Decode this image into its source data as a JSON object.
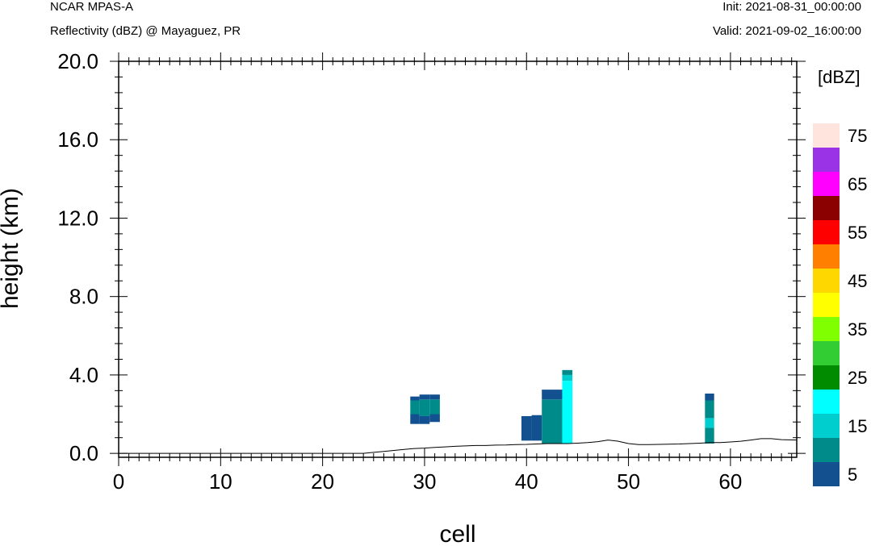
{
  "header": {
    "title": "NCAR MPAS-A",
    "subtitle": "Reflectivity (dBZ) @ Mayaguez, PR",
    "init": "Init: 2021-08-31_00:00:00",
    "valid": "Valid: 2021-09-02_16:00:00"
  },
  "chart_data": {
    "type": "heatmap",
    "title": "Reflectivity (dBZ) @ Mayaguez, PR",
    "xlabel": "cell",
    "ylabel": "height (km)",
    "xlim": [
      0,
      66.5
    ],
    "ylim": [
      -0.2,
      20.0
    ],
    "xticks": [
      0,
      10,
      20,
      30,
      40,
      50,
      60
    ],
    "xtick_labels": [
      "0",
      "10",
      "20",
      "30",
      "40",
      "50",
      "60"
    ],
    "yticks": [
      0,
      4,
      8,
      12,
      16,
      20
    ],
    "ytick_labels": [
      "0.0",
      "4.0",
      "8.0",
      "12.0",
      "16.0",
      "20.0"
    ],
    "grid": false,
    "colorbar": {
      "title": "[dBZ]",
      "levels": [
        5,
        10,
        15,
        20,
        25,
        30,
        35,
        40,
        45,
        50,
        55,
        60,
        65,
        70,
        75
      ],
      "labels": [
        "5",
        "15",
        "25",
        "35",
        "45",
        "55",
        "65",
        "75"
      ],
      "colors": [
        "#12508f",
        "#008b8b",
        "#00cdcd",
        "#00ffff",
        "#008b00",
        "#32cd32",
        "#7fff00",
        "#ffff00",
        "#ffd700",
        "#ff7f00",
        "#ff0000",
        "#8b0000",
        "#ff00ff",
        "#9a32e6",
        "#ffe4de"
      ]
    },
    "terrain": {
      "x": [
        0,
        23,
        24,
        25,
        26,
        27,
        28,
        29,
        30,
        31,
        32,
        33,
        34,
        35,
        36,
        37,
        38,
        39,
        40,
        41,
        42,
        43,
        44,
        45,
        46,
        47,
        48,
        49,
        50,
        51,
        52,
        53,
        54,
        55,
        56,
        57,
        58,
        59,
        60,
        61,
        62,
        63,
        64,
        65,
        66.5
      ],
      "height": [
        0,
        0,
        0,
        0.05,
        0.1,
        0.15,
        0.2,
        0.25,
        0.27,
        0.3,
        0.33,
        0.36,
        0.38,
        0.4,
        0.4,
        0.42,
        0.43,
        0.45,
        0.46,
        0.48,
        0.5,
        0.5,
        0.5,
        0.52,
        0.55,
        0.6,
        0.68,
        0.62,
        0.5,
        0.45,
        0.45,
        0.46,
        0.47,
        0.48,
        0.5,
        0.52,
        0.55,
        0.55,
        0.58,
        0.62,
        0.68,
        0.75,
        0.75,
        0.7,
        0.68
      ]
    },
    "cells": [
      {
        "x0": 28.6,
        "x1": 29.5,
        "z0": 1.5,
        "z1": 2.0,
        "dbz": 5
      },
      {
        "x0": 28.6,
        "x1": 29.5,
        "z0": 2.0,
        "z1": 2.7,
        "dbz": 10
      },
      {
        "x0": 28.6,
        "x1": 29.5,
        "z0": 2.7,
        "z1": 2.9,
        "dbz": 5
      },
      {
        "x0": 29.5,
        "x1": 30.5,
        "z0": 1.5,
        "z1": 1.9,
        "dbz": 5
      },
      {
        "x0": 29.5,
        "x1": 30.5,
        "z0": 1.9,
        "z1": 2.75,
        "dbz": 10
      },
      {
        "x0": 29.5,
        "x1": 30.5,
        "z0": 2.75,
        "z1": 3.0,
        "dbz": 5
      },
      {
        "x0": 30.5,
        "x1": 31.5,
        "z0": 1.6,
        "z1": 2.0,
        "dbz": 5
      },
      {
        "x0": 30.5,
        "x1": 31.5,
        "z0": 2.0,
        "z1": 2.75,
        "dbz": 10
      },
      {
        "x0": 30.5,
        "x1": 31.5,
        "z0": 2.75,
        "z1": 3.0,
        "dbz": 5
      },
      {
        "x0": 39.5,
        "x1": 40.5,
        "z0": 0.65,
        "z1": 1.9,
        "dbz": 5
      },
      {
        "x0": 40.5,
        "x1": 41.5,
        "z0": 0.65,
        "z1": 1.95,
        "dbz": 5
      },
      {
        "x0": 41.5,
        "x1": 43.5,
        "z0": 0.5,
        "z1": 2.75,
        "dbz": 10
      },
      {
        "x0": 41.5,
        "x1": 43.5,
        "z0": 2.75,
        "z1": 3.25,
        "dbz": 5
      },
      {
        "x0": 43.5,
        "x1": 44.5,
        "z0": 0.5,
        "z1": 3.7,
        "dbz": 20
      },
      {
        "x0": 43.5,
        "x1": 44.5,
        "z0": 3.7,
        "z1": 4.0,
        "dbz": 15
      },
      {
        "x0": 43.5,
        "x1": 44.5,
        "z0": 4.0,
        "z1": 4.25,
        "dbz": 10
      },
      {
        "x0": 57.5,
        "x1": 58.4,
        "z0": 0.5,
        "z1": 1.3,
        "dbz": 10
      },
      {
        "x0": 57.5,
        "x1": 58.4,
        "z0": 1.3,
        "z1": 1.8,
        "dbz": 15
      },
      {
        "x0": 57.5,
        "x1": 58.4,
        "z0": 1.8,
        "z1": 2.7,
        "dbz": 10
      },
      {
        "x0": 57.5,
        "x1": 58.4,
        "z0": 2.7,
        "z1": 3.05,
        "dbz": 5
      }
    ]
  }
}
